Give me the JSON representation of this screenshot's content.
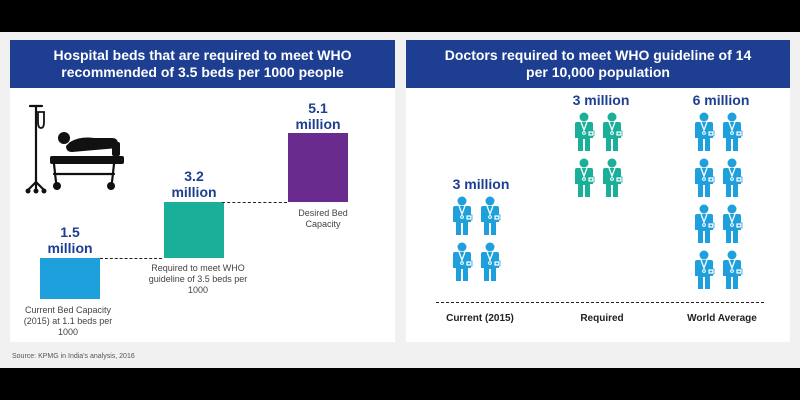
{
  "colors": {
    "header_bg": "#1d3e91",
    "bar_current": "#1ea0dc",
    "bar_required": "#1aaf99",
    "bar_desired": "#6a2b8f",
    "doctor_icon": "#1ea0dc",
    "doctor_icon_required": "#1aaf99",
    "value_text": "#1d3e91"
  },
  "source": "Source: KPMG in India's analysis, 2016",
  "chart_data": [
    {
      "type": "bar",
      "title": "Hospital beds that are required to meet WHO recommended of 3.5 beds per 1000 people",
      "categories": [
        "Current Bed Capacity (2015) at 1.1 beds per 1000",
        "Required to meet WHO guideline of 3.5 beds per 1000",
        "Desired Bed Capacity"
      ],
      "values": [
        1.5,
        3.2,
        5.1
      ],
      "value_labels": [
        "1.5 million",
        "3.2 million",
        "5.1 million"
      ],
      "unit": "million",
      "ylim": [
        0,
        5.1
      ],
      "grid": false,
      "icon": "hospital-bed-patient-icon"
    },
    {
      "type": "pictogram",
      "title": "Doctors required to meet WHO guideline of 14 per 10,000 population",
      "categories": [
        "Current (2015)",
        "Required",
        "World Average"
      ],
      "values": [
        3,
        3,
        6
      ],
      "value_labels": [
        "3 million",
        "3 million",
        "6 million"
      ],
      "unit": "million",
      "icons_shown": [
        4,
        4,
        8
      ],
      "icon": "doctor-icon"
    }
  ]
}
